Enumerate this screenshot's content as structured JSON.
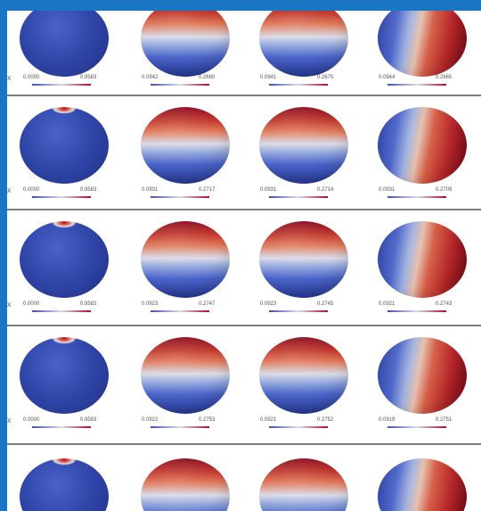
{
  "rows": [
    {
      "cells": [
        {
          "min": "0.0000",
          "max": "0.9583",
          "pattern": "polar"
        },
        {
          "min": "0.0942",
          "max": "0.2680",
          "pattern": "vertical"
        },
        {
          "min": "0.0941",
          "max": "0.2675",
          "pattern": "vertical"
        },
        {
          "min": "0.0944",
          "max": "0.2665",
          "pattern": "diagonal"
        }
      ]
    },
    {
      "cells": [
        {
          "min": "0.0000",
          "max": "0.9583",
          "pattern": "polar"
        },
        {
          "min": "0.0931",
          "max": "0.2717",
          "pattern": "vertical"
        },
        {
          "min": "0.0931",
          "max": "0.2714",
          "pattern": "vertical"
        },
        {
          "min": "0.0931",
          "max": "0.2709",
          "pattern": "diagonal"
        }
      ]
    },
    {
      "cells": [
        {
          "min": "0.0000",
          "max": "0.9583",
          "pattern": "polar"
        },
        {
          "min": "0.0923",
          "max": "0.2747",
          "pattern": "vertical"
        },
        {
          "min": "0.0923",
          "max": "0.2745",
          "pattern": "vertical"
        },
        {
          "min": "0.0921",
          "max": "0.2743",
          "pattern": "diagonal"
        }
      ]
    },
    {
      "cells": [
        {
          "min": "0.0000",
          "max": "0.9583",
          "pattern": "polar"
        },
        {
          "min": "0.0922",
          "max": "0.2753",
          "pattern": "vertical"
        },
        {
          "min": "0.0921",
          "max": "0.2752",
          "pattern": "vertical"
        },
        {
          "min": "0.0919",
          "max": "0.2751",
          "pattern": "diagonal"
        }
      ]
    },
    {
      "cells": [
        {
          "min": "",
          "max": "",
          "pattern": "polar"
        },
        {
          "min": "",
          "max": "",
          "pattern": "vertical"
        },
        {
          "min": "",
          "max": "",
          "pattern": "vertical"
        },
        {
          "min": "",
          "max": "",
          "pattern": "diagonal"
        }
      ]
    }
  ],
  "colors": {
    "background": "#1a76c2",
    "panel": "#ffffff",
    "divider": "#7d7d7d",
    "low": "#3b4cc0",
    "mid": "#d8dce8",
    "high": "#b40426"
  },
  "edge_mark": "x"
}
